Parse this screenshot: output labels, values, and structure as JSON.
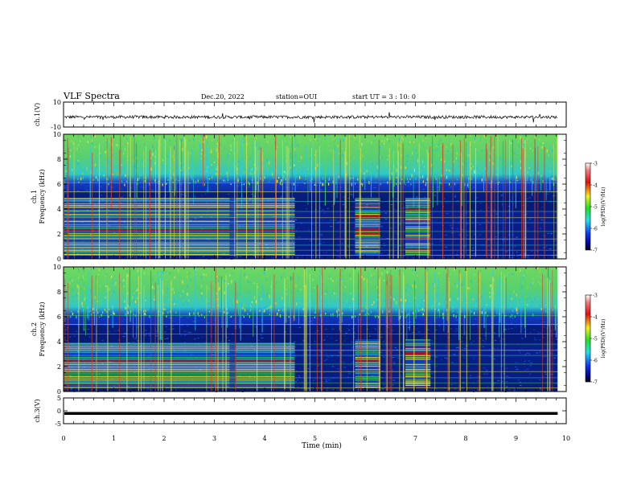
{
  "header": {
    "title": "VLF Spectra",
    "date": "Dec.20, 2022",
    "station": "station=OUI",
    "start_ut": "start UT =  3 : 10: 0"
  },
  "colors": {
    "background_spectrum": "#08208c",
    "dark_band": "#000060",
    "green": "#40d060",
    "cyan": "#30c8e8",
    "yellow": "#f0f040",
    "red": "#e02020"
  },
  "chart_data": [
    {
      "id": "ch1-voltage",
      "type": "line",
      "ylabel": "ch.1(V)",
      "ylim": [
        -10,
        10
      ],
      "yticks": [
        "10",
        "-10"
      ],
      "x_range_min": [
        0,
        9.83
      ],
      "description_values": "noise trace around -2 V"
    },
    {
      "id": "ch1-spectrogram",
      "type": "heatmap",
      "ylabel": "ch.1 Frequency (kHz)",
      "ylim": [
        0,
        10
      ],
      "yticks": [
        "0",
        "2",
        "4",
        "6",
        "8",
        "10"
      ],
      "colorbar": {
        "label": "log(PSD)(V²/Hz)",
        "range": [
          -7,
          -3
        ],
        "ticks": [
          "-3",
          "-4",
          "-5",
          "-6",
          "-7"
        ]
      },
      "segments_min": [
        [
          0,
          4.6
        ],
        [
          5.8,
          6.3
        ],
        [
          6.8,
          7.3
        ]
      ]
    },
    {
      "id": "ch2-spectrogram",
      "type": "heatmap",
      "ylabel": "ch.2 Frequency (kHz)",
      "ylim": [
        0,
        10
      ],
      "yticks": [
        "0",
        "2",
        "4",
        "6",
        "8",
        "10"
      ],
      "colorbar": {
        "label": "log(PSD)(V²/Hz)",
        "range": [
          -7,
          -3
        ],
        "ticks": [
          "-3",
          "-4",
          "-5",
          "-6",
          "-7"
        ]
      },
      "segments_min": [
        [
          0,
          4.6
        ],
        [
          5.8,
          6.3
        ],
        [
          6.8,
          7.3
        ]
      ]
    },
    {
      "id": "ch3-voltage",
      "type": "line",
      "ylabel": "ch.3(V)",
      "ylim": [
        -5,
        5
      ],
      "yticks": [
        "5",
        "0",
        "-5"
      ],
      "x_range_min": [
        0,
        9.83
      ],
      "description_values": "flat trace around -1 V"
    }
  ],
  "xaxis": {
    "label": "Time (min)",
    "xlim": [
      0,
      10
    ],
    "ticks": [
      "0",
      "1",
      "2",
      "3",
      "4",
      "5",
      "6",
      "7",
      "8",
      "9",
      "10"
    ]
  }
}
